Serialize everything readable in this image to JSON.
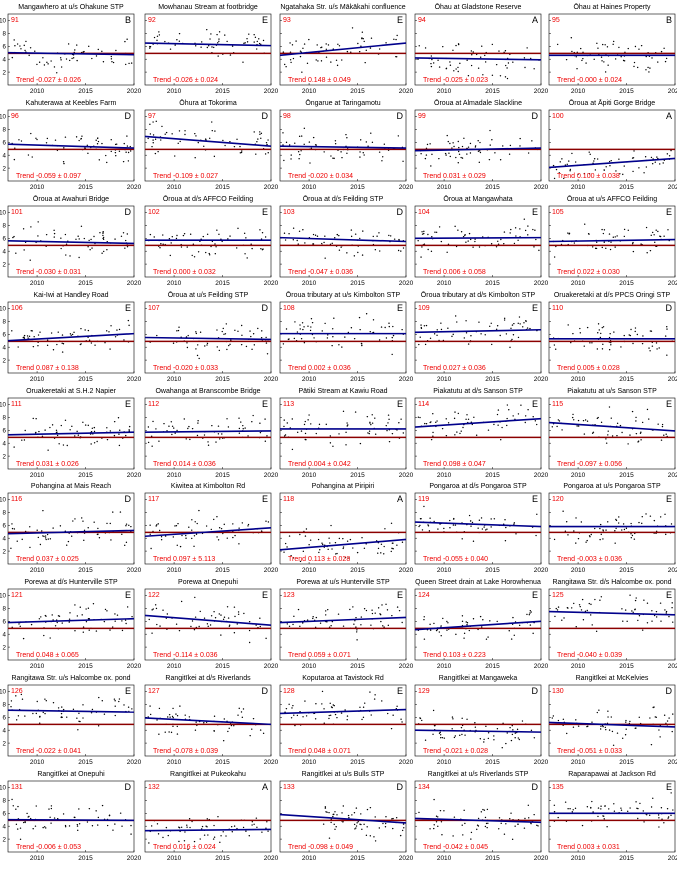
{
  "layout": {
    "columns": 5,
    "rows": 9
  },
  "axes": {
    "x_ticks": [
      "2010",
      "2015",
      "2020"
    ],
    "y_ticks": [
      "2",
      "4",
      "6",
      "8",
      "10"
    ]
  },
  "colors": {
    "trend": "#00008b",
    "reference": "#8b0000",
    "points": "#000000",
    "label": "#ee0000"
  },
  "chart_data": [
    {
      "number": "91",
      "title": "Mangawhero at u/s Ohakune STP",
      "grade": "B",
      "trend": "Trend -0.027 ± 0.026",
      "y_start": 5.0,
      "y_end": 4.7,
      "x_min": 2007,
      "x_max": 2020,
      "y_range": [
        0,
        11
      ],
      "reference": 4.9
    },
    {
      "number": "92",
      "title": "Mowhanau Stream at footbridge",
      "grade": "E",
      "trend": "Trend -0.026 ± 0.024",
      "y_start": 6.5,
      "y_end": 6.1,
      "x_min": 2007,
      "x_max": 2020,
      "y_range": [
        0,
        11
      ],
      "reference": 4.9
    },
    {
      "number": "93",
      "title": "Ngatahaka Str. u/s Mākākahi confluence",
      "grade": "E",
      "trend": "Trend 0.148 ± 0.049",
      "y_start": 4.6,
      "y_end": 6.5,
      "x_min": 2007,
      "x_max": 2020,
      "y_range": [
        0,
        11
      ],
      "reference": 4.9
    },
    {
      "number": "94",
      "title": "Ōhau at Gladstone Reserve",
      "grade": "A",
      "trend": "Trend -0.025 ± 0.023",
      "y_start": 4.2,
      "y_end": 3.9,
      "x_min": 2007,
      "x_max": 2020,
      "y_range": [
        0,
        11
      ],
      "reference": 4.9
    },
    {
      "number": "95",
      "title": "Ōhau at Haines Property",
      "grade": "B",
      "trend": "Trend -0.000 ± 0.024",
      "y_start": 4.6,
      "y_end": 4.6,
      "x_min": 2007,
      "x_max": 2020,
      "y_range": [
        0,
        11
      ],
      "reference": 4.9
    },
    {
      "number": "96",
      "title": "Kahuterawa at Keebles Farm",
      "grade": "D",
      "trend": "Trend -0.059 ± 0.097",
      "y_start": 5.7,
      "y_end": 5.1,
      "x_min": 2007,
      "x_max": 2020,
      "y_range": [
        0,
        11
      ],
      "reference": 4.9
    },
    {
      "number": "97",
      "title": "Ōhura at Tokorima",
      "grade": "D",
      "trend": "Trend -0.109 ± 0.027",
      "y_start": 6.9,
      "y_end": 5.4,
      "x_min": 2007,
      "x_max": 2020,
      "y_range": [
        0,
        11
      ],
      "reference": 4.9
    },
    {
      "number": "98",
      "title": "Ōngarue at Taringamotu",
      "grade": "D",
      "trend": "Trend -0.020 ± 0.034",
      "y_start": 5.4,
      "y_end": 5.1,
      "x_min": 2007,
      "x_max": 2020,
      "y_range": [
        0,
        11
      ],
      "reference": 4.9
    },
    {
      "number": "99",
      "title": "Ōroua at Almadale Slackline",
      "grade": "D",
      "trend": "Trend 0.031 ± 0.029",
      "y_start": 4.7,
      "y_end": 5.1,
      "x_min": 2007,
      "x_max": 2020,
      "y_range": [
        0,
        11
      ],
      "reference": 4.9
    },
    {
      "number": "100",
      "title": "Ōroua at Āpiti Gorge Bridge",
      "grade": "A",
      "trend": "Trend 0.100 ± 0.038",
      "y_start": 2.1,
      "y_end": 3.5,
      "x_min": 2007,
      "x_max": 2020,
      "y_range": [
        0,
        11
      ],
      "reference": 4.9
    },
    {
      "number": "101",
      "title": "Ōroua at Awahuri Bridge",
      "grade": "D",
      "trend": "Trend -0.030 ± 0.031",
      "y_start": 5.6,
      "y_end": 5.2,
      "x_min": 2007,
      "x_max": 2020,
      "y_range": [
        0,
        11
      ],
      "reference": 4.9
    },
    {
      "number": "102",
      "title": "Ōroua at d/s AFFCO Feilding",
      "grade": "E",
      "trend": "Trend 0.000 ± 0.032",
      "y_start": 5.7,
      "y_end": 5.7,
      "x_min": 2007,
      "x_max": 2020,
      "y_range": [
        0,
        11
      ],
      "reference": 4.9
    },
    {
      "number": "103",
      "title": "Ōroua at d/s Feilding STP",
      "grade": "D",
      "trend": "Trend -0.047 ± 0.036",
      "y_start": 6.1,
      "y_end": 5.5,
      "x_min": 2007,
      "x_max": 2020,
      "y_range": [
        0,
        11
      ],
      "reference": 4.9
    },
    {
      "number": "104",
      "title": "Ōroua at Mangawhata",
      "grade": "E",
      "trend": "Trend 0.006 ± 0.058",
      "y_start": 6.0,
      "y_end": 6.1,
      "x_min": 2007,
      "x_max": 2020,
      "y_range": [
        0,
        11
      ],
      "reference": 4.9
    },
    {
      "number": "105",
      "title": "Ōroua at u/s AFFCO Feilding",
      "grade": "E",
      "trend": "Trend 0.022 ± 0.030",
      "y_start": 5.5,
      "y_end": 5.8,
      "x_min": 2007,
      "x_max": 2020,
      "y_range": [
        0,
        11
      ],
      "reference": 4.9
    },
    {
      "number": "106",
      "title": "Kai-Iwi at Handley Road",
      "grade": "E",
      "trend": "Trend 0.087 ± 0.138",
      "y_start": 5.0,
      "y_end": 6.1,
      "x_min": 2007,
      "x_max": 2020,
      "y_range": [
        0,
        11
      ],
      "reference": 4.9
    },
    {
      "number": "107",
      "title": "Ōroua at u/s Feilding STP",
      "grade": "D",
      "trend": "Trend -0.020 ± 0.033",
      "y_start": 5.5,
      "y_end": 5.2,
      "x_min": 2007,
      "x_max": 2020,
      "y_range": [
        0,
        11
      ],
      "reference": 4.9
    },
    {
      "number": "108",
      "title": "Ōroua tributary at u/s Kimbolton STP",
      "grade": "E",
      "trend": "Trend 0.002 ± 0.036",
      "y_start": 6.1,
      "y_end": 6.1,
      "x_min": 2007,
      "x_max": 2020,
      "y_range": [
        0,
        11
      ],
      "reference": 4.9
    },
    {
      "number": "109",
      "title": "Ōroua tributary at d/s Kimbolton STP",
      "grade": "E",
      "trend": "Trend 0.027 ± 0.036",
      "y_start": 6.3,
      "y_end": 6.7,
      "x_min": 2007,
      "x_max": 2020,
      "y_range": [
        0,
        11
      ],
      "reference": 4.9
    },
    {
      "number": "110",
      "title": "Oruakeretaki at d/s PPCS Oringi STP",
      "grade": "D",
      "trend": "Trend 0.005 ± 0.028",
      "y_start": 5.3,
      "y_end": 5.3,
      "x_min": 2007,
      "x_max": 2020,
      "y_range": [
        0,
        11
      ],
      "reference": 4.9
    },
    {
      "number": "111",
      "title": "Oruakeretaki at S.H.2 Napier",
      "grade": "E",
      "trend": "Trend 0.031 ± 0.026",
      "y_start": 5.3,
      "y_end": 5.7,
      "x_min": 2007,
      "x_max": 2020,
      "y_range": [
        0,
        11
      ],
      "reference": 4.9
    },
    {
      "number": "112",
      "title": "Owahanga at Branscombe Bridge",
      "grade": "E",
      "trend": "Trend 0.014 ± 0.036",
      "y_start": 5.7,
      "y_end": 5.9,
      "x_min": 2007,
      "x_max": 2020,
      "y_range": [
        0,
        11
      ],
      "reference": 4.9
    },
    {
      "number": "113",
      "title": "Pātiki Stream at Kawiu Road",
      "grade": "E",
      "trend": "Trend 0.004 ± 0.042",
      "y_start": 6.2,
      "y_end": 6.2,
      "x_min": 2007,
      "x_max": 2020,
      "y_range": [
        0,
        11
      ],
      "reference": 4.9
    },
    {
      "number": "114",
      "title": "Piakatutu at d/s Sanson STP",
      "grade": "E",
      "trend": "Trend 0.098 ± 0.047",
      "y_start": 6.5,
      "y_end": 7.8,
      "x_min": 2007,
      "x_max": 2020,
      "y_range": [
        0,
        11
      ],
      "reference": 4.9
    },
    {
      "number": "115",
      "title": "Piakatutu at u/s Sanson STP",
      "grade": "E",
      "trend": "Trend -0.097 ± 0.056",
      "y_start": 7.2,
      "y_end": 5.9,
      "x_min": 2007,
      "x_max": 2020,
      "y_range": [
        0,
        11
      ],
      "reference": 4.9
    },
    {
      "number": "116",
      "title": "Pohangina at Mais Reach",
      "grade": "D",
      "trend": "Trend 0.037 ± 0.025",
      "y_start": 4.7,
      "y_end": 5.2,
      "x_min": 2007,
      "x_max": 2020,
      "y_range": [
        0,
        11
      ],
      "reference": 4.9
    },
    {
      "number": "117",
      "title": "Kiwitea at Kimbolton Rd",
      "grade": "E",
      "trend": "Trend 0.097 ± 5.113",
      "y_start": 4.3,
      "y_end": 5.6,
      "x_min": 2007,
      "x_max": 2020,
      "y_range": [
        0,
        11
      ],
      "reference": 4.9
    },
    {
      "number": "118",
      "title": "Pohangina at Piripiri",
      "grade": "A",
      "trend": "Trend 0.113 ± 0.028",
      "y_start": 2.2,
      "y_end": 3.8,
      "x_min": 2007,
      "x_max": 2020,
      "y_range": [
        0,
        11
      ],
      "reference": 4.9
    },
    {
      "number": "119",
      "title": "Pongaroa at d/s Pongaroa STP",
      "grade": "E",
      "trend": "Trend -0.055 ± 0.040",
      "y_start": 6.5,
      "y_end": 5.8,
      "x_min": 2007,
      "x_max": 2020,
      "y_range": [
        0,
        11
      ],
      "reference": 4.9
    },
    {
      "number": "120",
      "title": "Pongaroa at u/s Pongaroa STP",
      "grade": "E",
      "trend": "Trend -0.003 ± 0.036",
      "y_start": 5.8,
      "y_end": 5.8,
      "x_min": 2007,
      "x_max": 2020,
      "y_range": [
        0,
        11
      ],
      "reference": 4.9
    },
    {
      "number": "121",
      "title": "Porewa at d/s Hunterville STP",
      "grade": "E",
      "trend": "Trend 0.048 ± 0.065",
      "y_start": 5.8,
      "y_end": 6.4,
      "x_min": 2007,
      "x_max": 2020,
      "y_range": [
        0,
        11
      ],
      "reference": 4.9
    },
    {
      "number": "122",
      "title": "Porewa at Onepuhi",
      "grade": "E",
      "trend": "Trend -0.114 ± 0.036",
      "y_start": 6.9,
      "y_end": 5.4,
      "x_min": 2007,
      "x_max": 2020,
      "y_range": [
        0,
        11
      ],
      "reference": 4.9
    },
    {
      "number": "123",
      "title": "Porewa at u/s Hunterville STP",
      "grade": "E",
      "trend": "Trend 0.059 ± 0.071",
      "y_start": 5.8,
      "y_end": 6.6,
      "x_min": 2007,
      "x_max": 2020,
      "y_range": [
        0,
        11
      ],
      "reference": 4.9
    },
    {
      "number": "124",
      "title": "Queen Street drain at Lake Horowhenua",
      "grade": "E",
      "trend": "Trend 0.103 ± 0.223",
      "y_start": 4.7,
      "y_end": 6.0,
      "x_min": 2007,
      "x_max": 2020,
      "y_range": [
        0,
        11
      ],
      "reference": 4.9
    },
    {
      "number": "125",
      "title": "Rangitawa Str. d/s Halcombe ox. pond",
      "grade": "E",
      "trend": "Trend -0.040 ± 0.039",
      "y_start": 7.5,
      "y_end": 7.0,
      "x_min": 2007,
      "x_max": 2020,
      "y_range": [
        0,
        11
      ],
      "reference": 4.9
    },
    {
      "number": "126",
      "title": "Rangitawa Str. u/s Halcombe ox. pond",
      "grade": "E",
      "trend": "Trend -0.022 ± 0.041",
      "y_start": 7.1,
      "y_end": 6.8,
      "x_min": 2007,
      "x_max": 2020,
      "y_range": [
        0,
        11
      ],
      "reference": 4.9
    },
    {
      "number": "127",
      "title": "Rangitīkei at d/s Riverlands",
      "grade": "D",
      "trend": "Trend -0.078 ± 0.039",
      "y_start": 5.9,
      "y_end": 4.9,
      "x_min": 2007,
      "x_max": 2020,
      "y_range": [
        0,
        11
      ],
      "reference": 4.9
    },
    {
      "number": "128",
      "title": "Koputaroa at Tavistock Rd",
      "grade": "E",
      "trend": "Trend 0.048 ± 0.071",
      "y_start": 6.6,
      "y_end": 7.2,
      "x_min": 2007,
      "x_max": 2020,
      "y_range": [
        0,
        11
      ],
      "reference": 4.9
    },
    {
      "number": "129",
      "title": "Rangitīkei at Mangaweka",
      "grade": "D",
      "trend": "Trend -0.021 ± 0.028",
      "y_start": 4.0,
      "y_end": 3.7,
      "x_min": 2007,
      "x_max": 2020,
      "y_range": [
        0,
        11
      ],
      "reference": 4.9
    },
    {
      "number": "130",
      "title": "Rangitīkei at McKelvies",
      "grade": "D",
      "trend": "Trend -0.051 ± 0.033",
      "y_start": 5.2,
      "y_end": 4.5,
      "x_min": 2007,
      "x_max": 2020,
      "y_range": [
        0,
        11
      ],
      "reference": 4.9
    },
    {
      "number": "131",
      "title": "Rangitīkei at Onepuhi",
      "grade": "D",
      "trend": "Trend -0.006 ± 0.053",
      "y_start": 5.0,
      "y_end": 4.9,
      "x_min": 2007,
      "x_max": 2020,
      "y_range": [
        0,
        11
      ],
      "reference": 4.9
    },
    {
      "number": "132",
      "title": "Rangitīkei at Pukeokahu",
      "grade": "A",
      "trend": "Trend 0.016 ± 0.024",
      "y_start": 3.3,
      "y_end": 3.5,
      "x_min": 2007,
      "x_max": 2020,
      "y_range": [
        0,
        11
      ],
      "reference": 4.9
    },
    {
      "number": "133",
      "title": "Rangitīkei at u/s Bulls STP",
      "grade": "D",
      "trend": "Trend -0.098 ± 0.049",
      "y_start": 5.8,
      "y_end": 4.5,
      "x_min": 2007,
      "x_max": 2020,
      "y_range": [
        0,
        11
      ],
      "reference": 4.9
    },
    {
      "number": "134",
      "title": "Rangitīkei at u/s Riverlands STP",
      "grade": "D",
      "trend": "Trend -0.042 ± 0.045",
      "y_start": 5.2,
      "y_end": 4.6,
      "x_min": 2007,
      "x_max": 2020,
      "y_range": [
        0,
        11
      ],
      "reference": 4.9
    },
    {
      "number": "135",
      "title": "Raparapawai at Jackson Rd",
      "grade": "E",
      "trend": "Trend 0.003 ± 0.031",
      "y_start": 6.0,
      "y_end": 6.0,
      "x_min": 2007,
      "x_max": 2020,
      "y_range": [
        0,
        11
      ],
      "reference": 4.9
    }
  ]
}
